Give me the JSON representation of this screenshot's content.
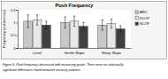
{
  "chart_data": {
    "type": "bar",
    "title": "Push Frequency",
    "y_label": "Frequency (pushes/sec)",
    "categories": [
      "Level",
      "Gentle Slope",
      "Steep Slope"
    ],
    "series": [
      {
        "name": "ARC",
        "color": "#c8c8c8",
        "values": [
          1.05,
          1.0,
          0.9
        ],
        "errors": [
          0.25,
          0.22,
          0.2
        ]
      },
      {
        "name": "DLOP",
        "color": "#e8e8e8",
        "values": [
          1.1,
          1.05,
          0.95
        ],
        "errors": [
          0.2,
          0.2,
          0.18
        ]
      },
      {
        "name": "SLOP",
        "color": "#404040",
        "values": [
          0.9,
          0.85,
          0.75
        ],
        "errors": [
          0.15,
          0.15,
          0.12
        ]
      }
    ],
    "ylim": [
      0,
      1.5
    ],
    "yticks": [
      0,
      0.5,
      1,
      1.5
    ],
    "grid": false,
    "legend": "right",
    "caption": [
      "Figure 5. Push frequency decreased with increasing grade. There were no statistically",
      "significant differences found between recovery patterns."
    ]
  }
}
